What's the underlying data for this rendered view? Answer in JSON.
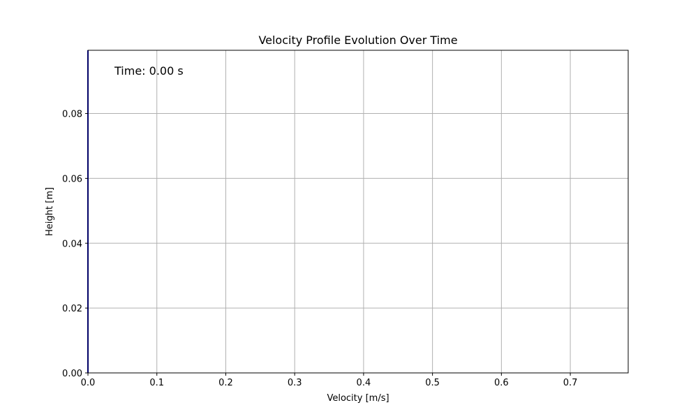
{
  "chart_data": {
    "type": "line",
    "title": "Velocity Profile Evolution Over Time",
    "xlabel": "Velocity [m/s]",
    "ylabel": "Height [m]",
    "xlim": [
      0,
      0.784
    ],
    "ylim": [
      0,
      0.0995
    ],
    "xticks": [
      0.0,
      0.1,
      0.2,
      0.3,
      0.4,
      0.5,
      0.6,
      0.7
    ],
    "xtick_labels": [
      "0.0",
      "0.1",
      "0.2",
      "0.3",
      "0.4",
      "0.5",
      "0.6",
      "0.7"
    ],
    "yticks": [
      0.0,
      0.02,
      0.04,
      0.06,
      0.08
    ],
    "ytick_labels": [
      "0.00",
      "0.02",
      "0.04",
      "0.06",
      "0.08"
    ],
    "grid": true,
    "annotation": "Time: 0.00 s",
    "series": [
      {
        "color": "#0000cc",
        "x": [
          0,
          0
        ],
        "y": [
          0,
          0.0995
        ]
      }
    ]
  }
}
